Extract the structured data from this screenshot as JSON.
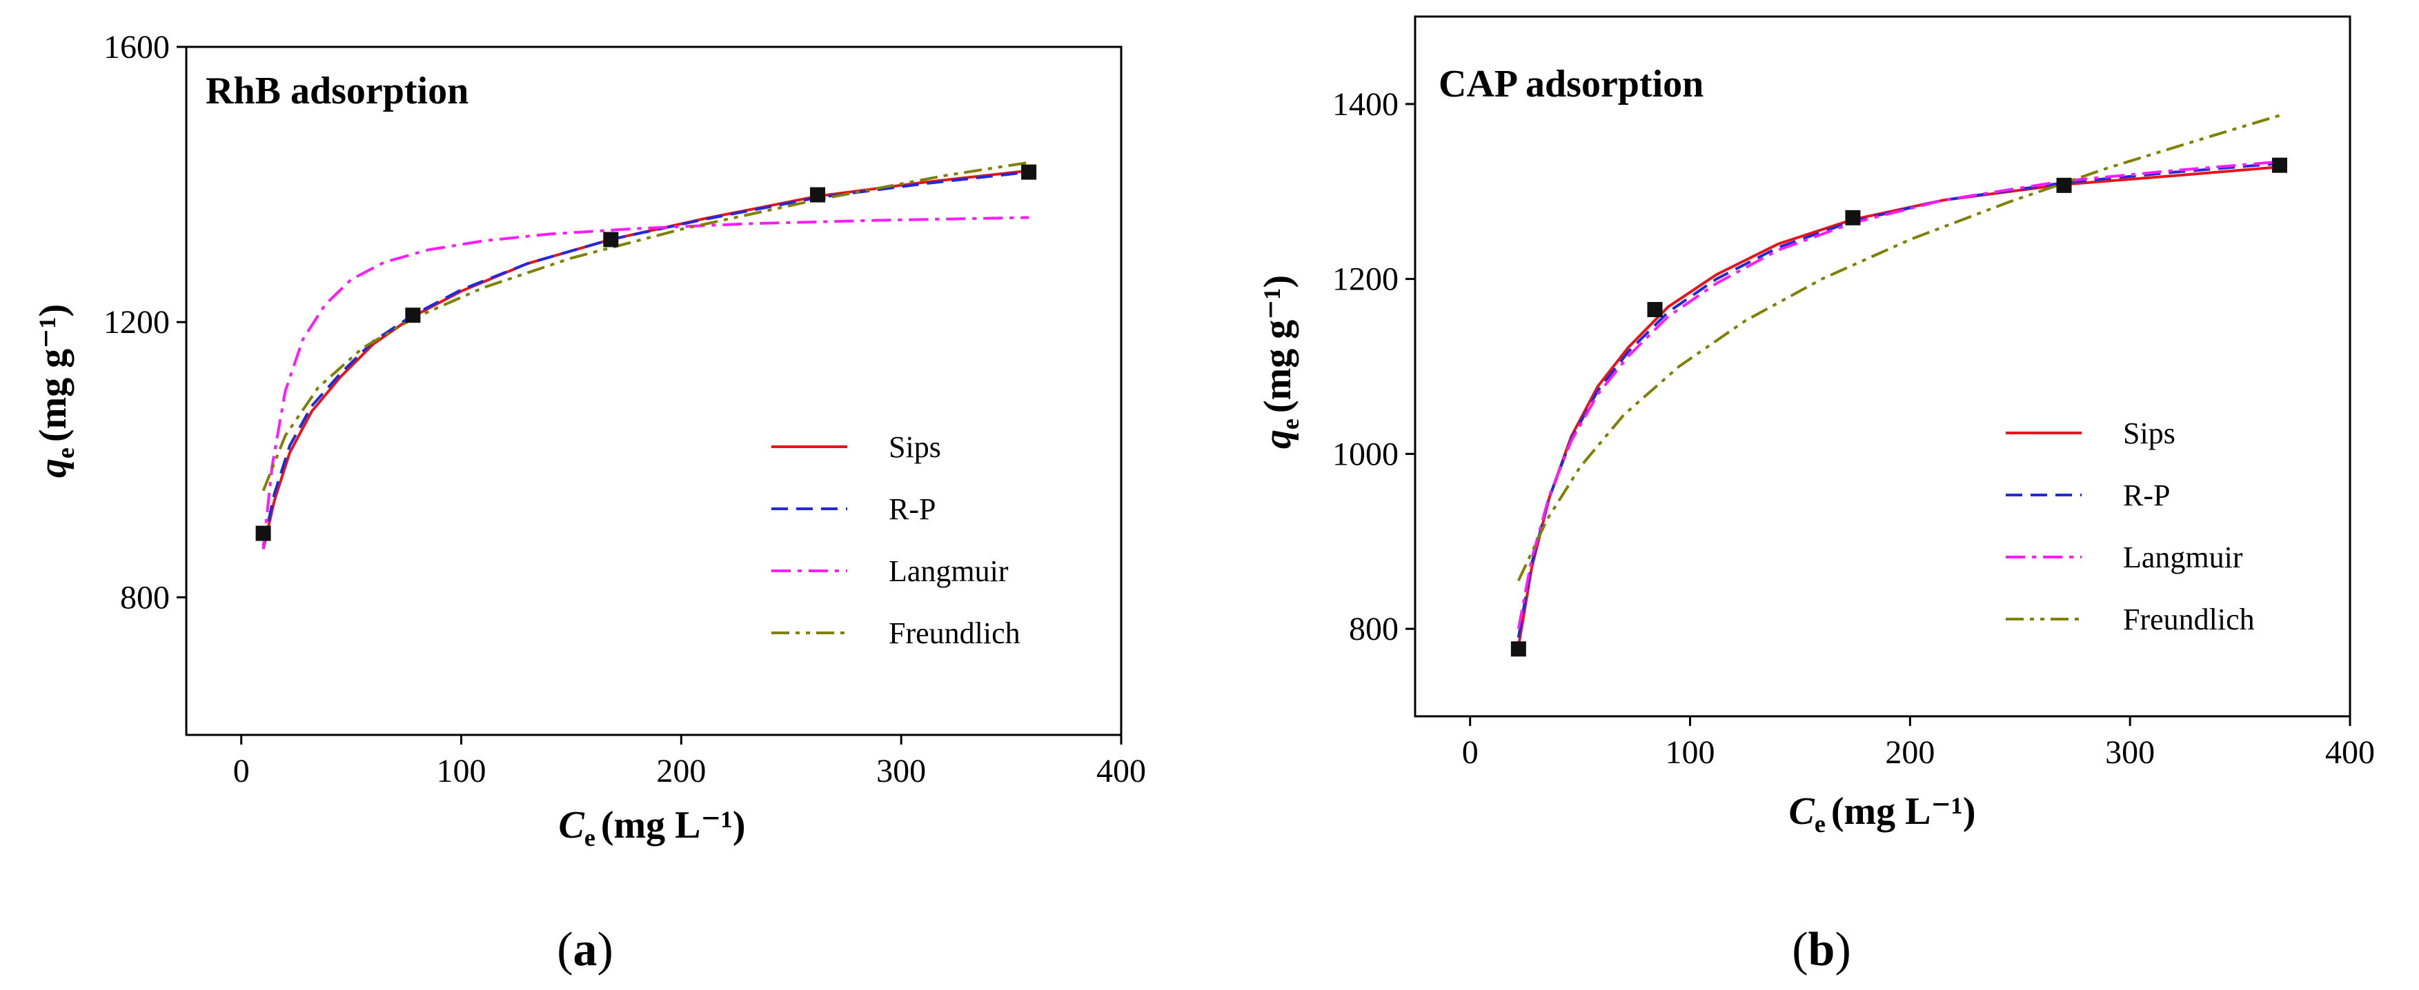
{
  "chart_data": [
    {
      "type": "scatter",
      "title": "RhB adsorption",
      "caption_letter": "a",
      "xlabel_main": "C",
      "xlabel_sub": "e",
      "xlabel_unit": "(mg L⁻¹)",
      "ylabel_main": "q",
      "ylabel_sub": "e",
      "ylabel_unit": "(mg g⁻¹)",
      "xlim": [
        -25,
        400
      ],
      "ylim": [
        600,
        1600
      ],
      "xticks": [
        0,
        100,
        200,
        300,
        400
      ],
      "yticks": [
        800,
        1200,
        1600
      ],
      "points": {
        "x": [
          10,
          78,
          168,
          262,
          358
        ],
        "y": [
          893,
          1210,
          1320,
          1385,
          1418
        ]
      },
      "series": [
        {
          "name": "Sips",
          "color": "#e8141b",
          "dash": "solid",
          "x": [
            10,
            15,
            22,
            32,
            45,
            60,
            78,
            100,
            130,
            168,
            210,
            262,
            310,
            358
          ],
          "y": [
            870,
            940,
            1010,
            1070,
            1120,
            1168,
            1208,
            1245,
            1285,
            1320,
            1350,
            1383,
            1403,
            1420
          ]
        },
        {
          "name": "R-P",
          "color": "#1f2bd6",
          "dash": "dashed",
          "x": [
            10,
            15,
            22,
            32,
            45,
            60,
            78,
            100,
            130,
            168,
            210,
            262,
            310,
            358
          ],
          "y": [
            875,
            950,
            1020,
            1078,
            1125,
            1172,
            1210,
            1247,
            1285,
            1320,
            1349,
            1381,
            1401,
            1418
          ]
        },
        {
          "name": "Langmuir",
          "color": "#ff1aff",
          "dash": "dashdot",
          "x": [
            10,
            14,
            20,
            28,
            38,
            50,
            65,
            85,
            110,
            140,
            180,
            230,
            290,
            358
          ],
          "y": [
            870,
            990,
            1100,
            1175,
            1225,
            1262,
            1287,
            1305,
            1318,
            1328,
            1336,
            1343,
            1348,
            1352
          ]
        },
        {
          "name": "Freundlich",
          "color": "#7f7f00",
          "dash": "dashdotdot",
          "x": [
            10,
            20,
            35,
            55,
            78,
            110,
            150,
            200,
            262,
            320,
            358
          ],
          "y": [
            955,
            1035,
            1105,
            1162,
            1205,
            1250,
            1293,
            1335,
            1378,
            1413,
            1432
          ]
        }
      ]
    },
    {
      "type": "scatter",
      "title": "CAP adsorption",
      "caption_letter": "b",
      "xlabel_main": "C",
      "xlabel_sub": "e",
      "xlabel_unit": "(mg L⁻¹)",
      "ylabel_main": "q",
      "ylabel_sub": "e",
      "ylabel_unit": "(mg g⁻¹)",
      "xlim": [
        -25,
        400
      ],
      "ylim": [
        700,
        1500
      ],
      "xticks": [
        0,
        100,
        200,
        300,
        400
      ],
      "yticks": [
        800,
        1000,
        1200,
        1400
      ],
      "points": {
        "x": [
          22,
          84,
          174,
          270,
          368
        ],
        "y": [
          777,
          1165,
          1270,
          1307,
          1330
        ]
      },
      "series": [
        {
          "name": "Sips",
          "color": "#e8141b",
          "dash": "solid",
          "x": [
            22,
            28,
            36,
            46,
            58,
            72,
            90,
            112,
            140,
            174,
            215,
            270,
            320,
            368
          ],
          "y": [
            780,
            870,
            950,
            1020,
            1077,
            1122,
            1168,
            1205,
            1240,
            1268,
            1290,
            1308,
            1318,
            1328
          ]
        },
        {
          "name": "R-P",
          "color": "#1f2bd6",
          "dash": "dashed",
          "x": [
            22,
            28,
            36,
            46,
            58,
            72,
            90,
            112,
            140,
            174,
            215,
            270,
            320,
            368
          ],
          "y": [
            790,
            875,
            950,
            1017,
            1072,
            1117,
            1162,
            1200,
            1236,
            1266,
            1290,
            1310,
            1322,
            1332
          ]
        },
        {
          "name": "Langmuir",
          "color": "#ff1aff",
          "dash": "dashdot",
          "x": [
            22,
            28,
            36,
            46,
            58,
            72,
            90,
            112,
            140,
            174,
            215,
            270,
            320,
            368
          ],
          "y": [
            800,
            880,
            952,
            1015,
            1068,
            1112,
            1157,
            1195,
            1233,
            1264,
            1290,
            1312,
            1324,
            1334
          ]
        },
        {
          "name": "Freundlich",
          "color": "#7f7f00",
          "dash": "dashdotdot",
          "x": [
            22,
            35,
            50,
            70,
            95,
            125,
            160,
            200,
            245,
            290,
            330,
            368
          ],
          "y": [
            855,
            925,
            985,
            1045,
            1100,
            1152,
            1200,
            1245,
            1288,
            1327,
            1358,
            1387
          ]
        }
      ]
    }
  ]
}
